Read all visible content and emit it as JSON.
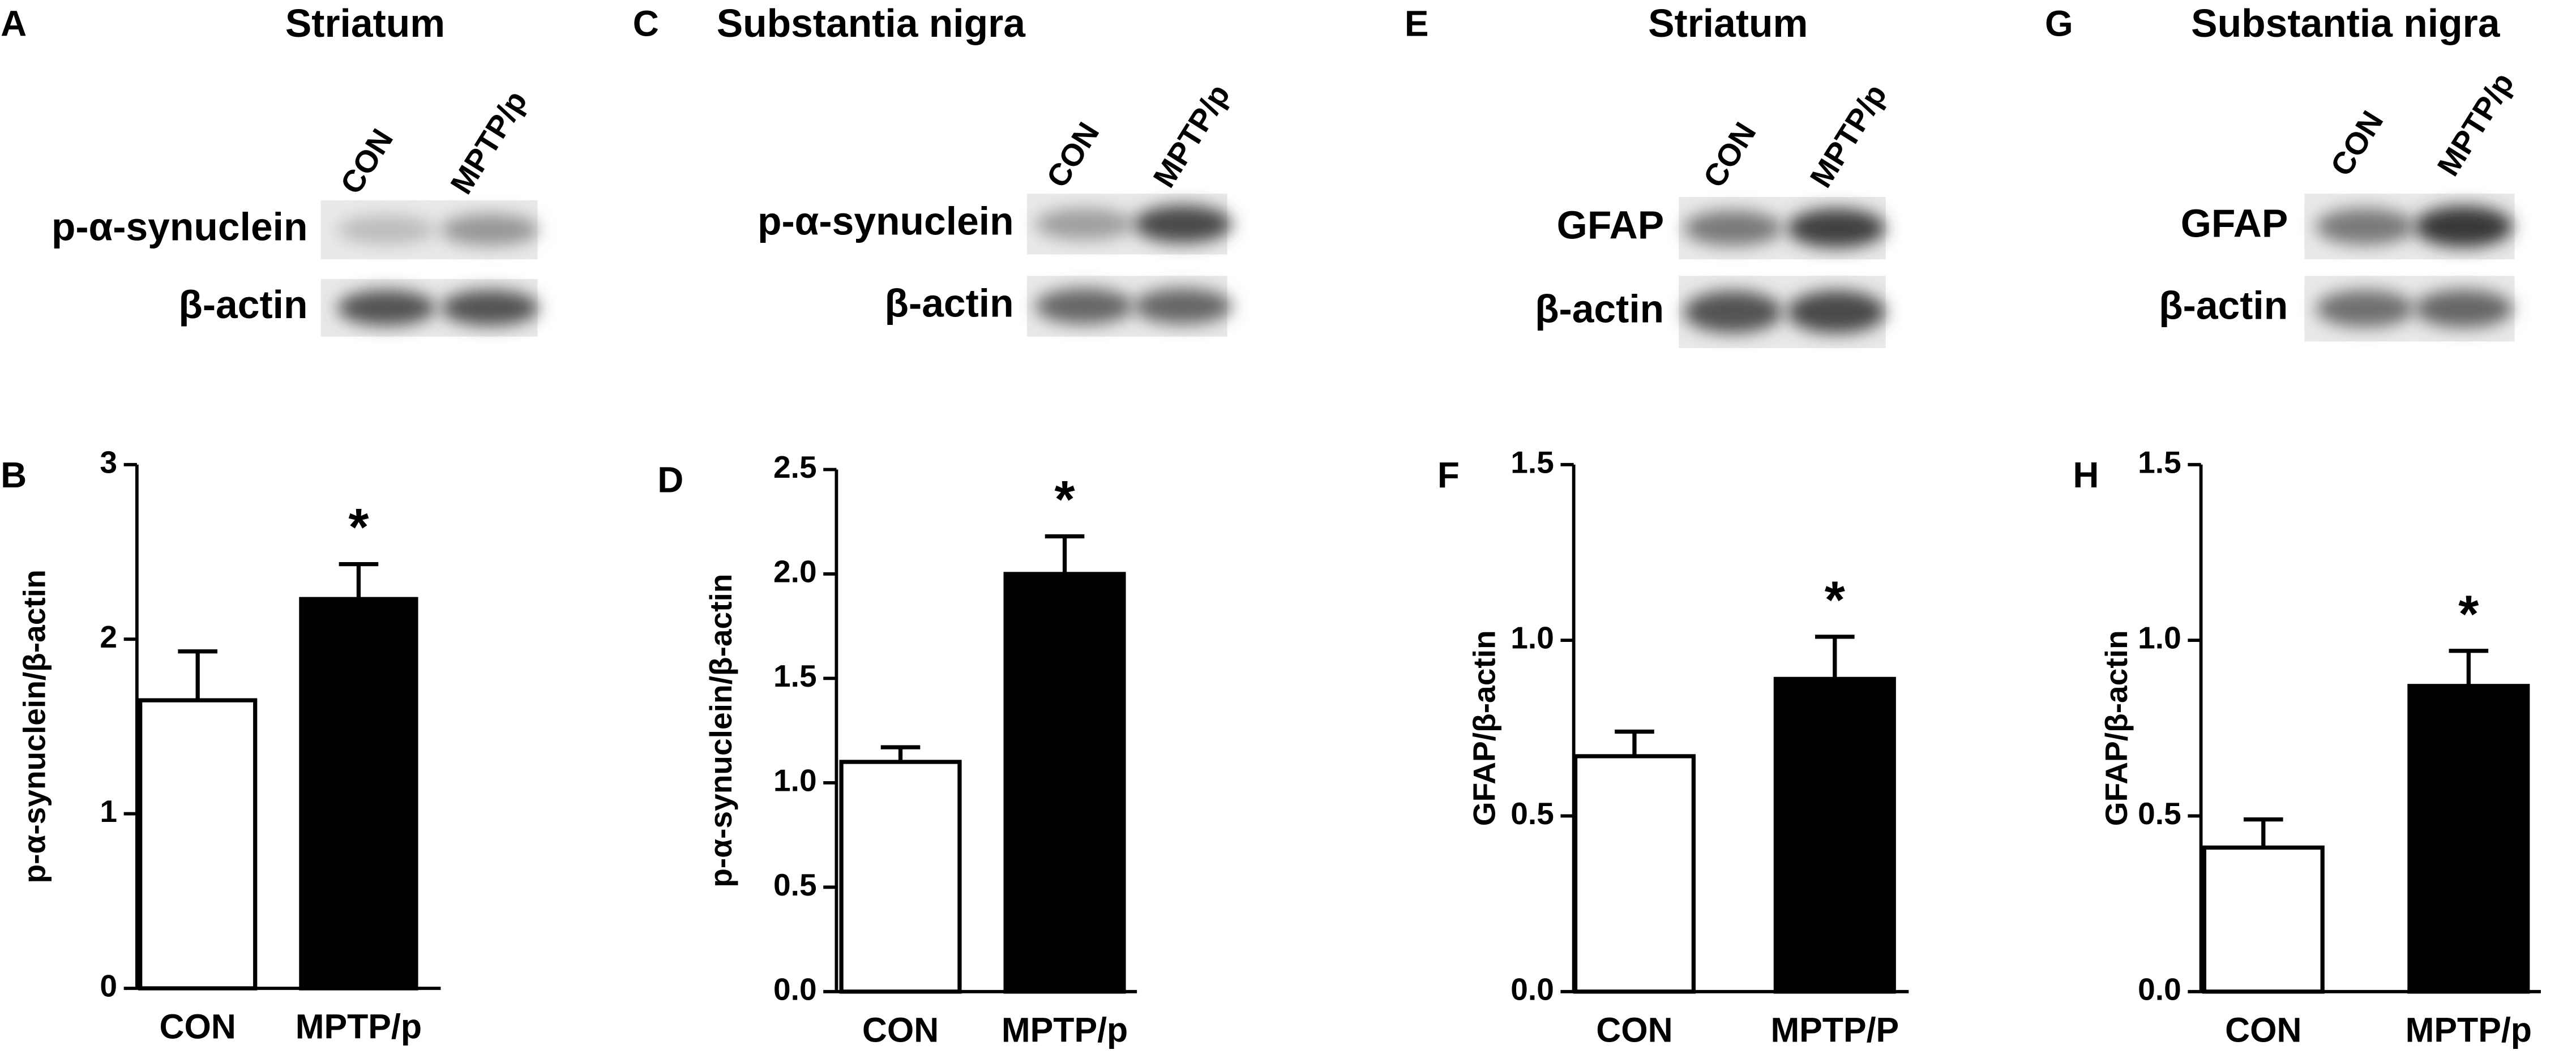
{
  "blots": [
    {
      "panel": "A",
      "title": "Striatum",
      "lanes": [
        "CON",
        "MPTP/p"
      ],
      "rows": [
        "p-α-synuclein",
        "β-actin"
      ]
    },
    {
      "panel": "C",
      "title": "Substantia nigra",
      "lanes": [
        "CON",
        "MPTP/p"
      ],
      "rows": [
        "p-α-synuclein",
        "β-actin"
      ]
    },
    {
      "panel": "E",
      "title": "Striatum",
      "lanes": [
        "CON",
        "MPTP/p"
      ],
      "rows": [
        "GFAP",
        "β-actin"
      ]
    },
    {
      "panel": "G",
      "title": "Substantia nigra",
      "lanes": [
        "CON",
        "MPTP/p"
      ],
      "rows": [
        "GFAP",
        "β-actin"
      ]
    }
  ],
  "chart_data": [
    {
      "type": "bar",
      "panel": "B",
      "ylabel": "p-α-synuclein/β-actin",
      "categories": [
        "CON",
        "MPTP/p"
      ],
      "values": [
        1.65,
        2.23
      ],
      "errors": [
        0.28,
        0.2
      ],
      "colors": [
        "#ffffff",
        "#000000"
      ],
      "ylim": [
        0,
        3
      ],
      "yticks": [
        0,
        1,
        2,
        3
      ],
      "annotation": "*"
    },
    {
      "type": "bar",
      "panel": "D",
      "ylabel": "p-α-synuclein/β-actin",
      "categories": [
        "CON",
        "MPTP/p"
      ],
      "values": [
        1.1,
        2.0
      ],
      "errors": [
        0.07,
        0.18
      ],
      "colors": [
        "#ffffff",
        "#000000"
      ],
      "ylim": [
        0,
        2.5
      ],
      "yticks": [
        {
          "value": 0,
          "label": "0.0"
        },
        0.5,
        {
          "value": 1,
          "label": "1.0"
        },
        1.5,
        {
          "value": 2,
          "label": "2.0"
        },
        2.5
      ],
      "annotation": "*"
    },
    {
      "type": "bar",
      "panel": "F",
      "ylabel": "GFAP/β-actin",
      "categories": [
        "CON",
        "MPTP/P"
      ],
      "values": [
        0.67,
        0.89
      ],
      "errors": [
        0.07,
        0.12
      ],
      "colors": [
        "#ffffff",
        "#000000"
      ],
      "ylim": [
        0,
        1.5
      ],
      "yticks": [
        {
          "value": 0,
          "label": "0.0"
        },
        0.5,
        {
          "value": 1,
          "label": "1.0"
        },
        1.5
      ],
      "annotation": "*"
    },
    {
      "type": "bar",
      "panel": "H",
      "ylabel": "GFAP/β-actin",
      "categories": [
        "CON",
        "MPTP/p"
      ],
      "values": [
        0.41,
        0.87
      ],
      "errors": [
        0.08,
        0.1
      ],
      "colors": [
        "#ffffff",
        "#000000"
      ],
      "ylim": [
        0,
        1.5
      ],
      "yticks": [
        {
          "value": 0,
          "label": "0.0"
        },
        0.5,
        {
          "value": 1,
          "label": "1.0"
        },
        1.5
      ],
      "annotation": "*"
    }
  ]
}
